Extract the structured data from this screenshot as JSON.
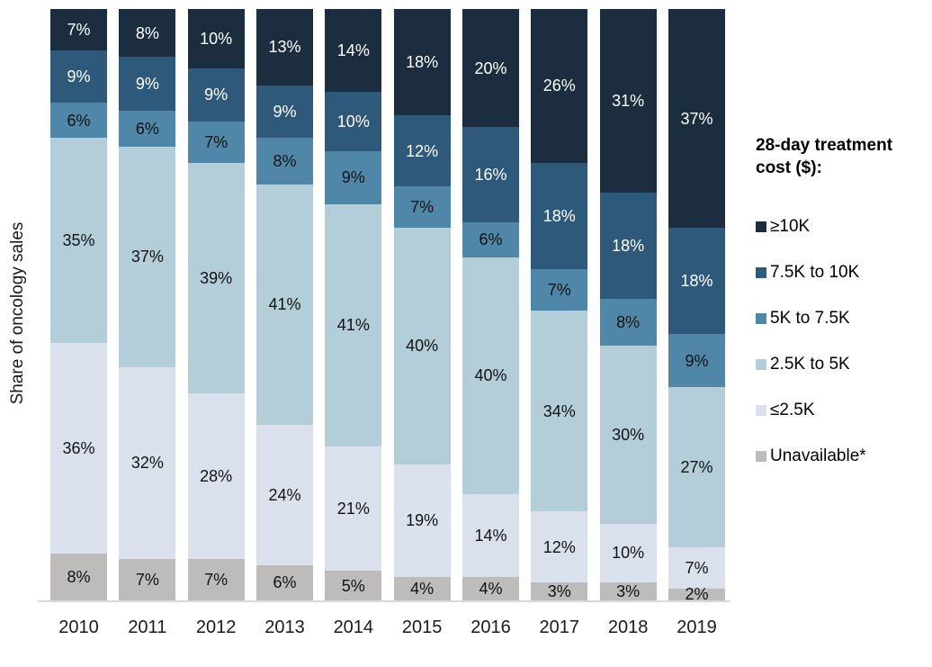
{
  "chart_data": {
    "type": "bar",
    "subtype": "stacked-100-percent",
    "title": "",
    "ylabel": "Share of oncology sales",
    "xlabel": "",
    "value_suffix": "%",
    "grid": false,
    "baseline_color": "#d9d9d9",
    "categories": [
      "2010",
      "2011",
      "2012",
      "2013",
      "2014",
      "2015",
      "2016",
      "2017",
      "2018",
      "2019"
    ],
    "stack_order": "top-to-bottom",
    "series": [
      {
        "name": "≥10K",
        "color": "#1c2d40",
        "label_color": "#ffffff",
        "values": [
          7,
          8,
          10,
          13,
          14,
          18,
          20,
          26,
          31,
          37
        ]
      },
      {
        "name": "7.5K to 10K",
        "color": "#2f597b",
        "label_color": "#ffffff",
        "values": [
          9,
          9,
          9,
          9,
          10,
          12,
          16,
          18,
          18,
          18
        ]
      },
      {
        "name": "5K to 7.5K",
        "color": "#5087a8",
        "label_color": "#121212",
        "values": [
          6,
          6,
          7,
          8,
          9,
          7,
          6,
          7,
          8,
          9
        ]
      },
      {
        "name": "2.5K to 5K",
        "color": "#b4ced9",
        "label_color": "#121212",
        "values": [
          35,
          37,
          39,
          41,
          41,
          40,
          40,
          34,
          30,
          27
        ]
      },
      {
        "name": "≤2.5K",
        "color": "#dae1ec",
        "label_color": "#121212",
        "values": [
          36,
          32,
          28,
          24,
          21,
          19,
          14,
          12,
          10,
          7
        ]
      },
      {
        "name": "Unavailable*",
        "color": "#bebbbb",
        "label_color": "#121212",
        "values": [
          8,
          7,
          7,
          6,
          5,
          4,
          4,
          3,
          3,
          2
        ]
      }
    ],
    "legend": {
      "title": "28-day treatment cost ($):",
      "position": "right",
      "items": [
        "≥10K",
        "7.5K to 10K",
        "5K to 7.5K",
        "2.5K to 5K",
        "≤2.5K",
        "Unavailable*"
      ]
    }
  }
}
